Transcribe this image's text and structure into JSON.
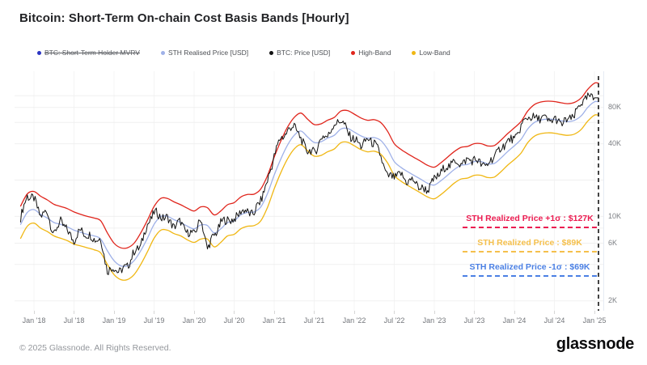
{
  "header": {
    "title": "Bitcoin: Short-Term On-chain Cost Basis Bands [Hourly]"
  },
  "legend": {
    "items": [
      {
        "label": "BTC: Short-Term Holder MVRV",
        "color": "#2b35c3",
        "disabled": true
      },
      {
        "label": "STH Realised Price [USD]",
        "color": "#9fb1e8",
        "disabled": false
      },
      {
        "label": "BTC: Price [USD]",
        "color": "#111111",
        "disabled": false
      },
      {
        "label": "High-Band",
        "color": "#e0251c",
        "disabled": false
      },
      {
        "label": "Low-Band",
        "color": "#f0b713",
        "disabled": false
      }
    ]
  },
  "chart_data": {
    "type": "line",
    "title": "Bitcoin: Short-Term On-chain Cost Basis Bands [Hourly]",
    "y_scale": "log",
    "y_units": "USD thousands",
    "ylim": [
      2,
      130
    ],
    "grid": true,
    "legend_position": "top-left",
    "y_ticks": [
      {
        "label": "80K",
        "value": 80
      },
      {
        "label": "40K",
        "value": 40
      },
      {
        "label": "10K",
        "value": 10
      },
      {
        "label": "6K",
        "value": 6
      },
      {
        "label": "2K",
        "value": 2
      }
    ],
    "y_gridlines": [
      100,
      80,
      60,
      40,
      20,
      10,
      8,
      6,
      4,
      2
    ],
    "start_month": "2017-11",
    "x_ticks": [
      {
        "label": "Jan '18",
        "month_index": 2
      },
      {
        "label": "Jul '18",
        "month_index": 8
      },
      {
        "label": "Jan '19",
        "month_index": 14
      },
      {
        "label": "Jul '19",
        "month_index": 20
      },
      {
        "label": "Jan '20",
        "month_index": 26
      },
      {
        "label": "Jul '20",
        "month_index": 32
      },
      {
        "label": "Jan '21",
        "month_index": 38
      },
      {
        "label": "Jul '21",
        "month_index": 44
      },
      {
        "label": "Jan '22",
        "month_index": 50
      },
      {
        "label": "Jul '22",
        "month_index": 56
      },
      {
        "label": "Jan '23",
        "month_index": 62
      },
      {
        "label": "Jul '23",
        "month_index": 68
      },
      {
        "label": "Jan '24",
        "month_index": 74
      },
      {
        "label": "Jul '24",
        "month_index": 80
      },
      {
        "label": "Jan '25",
        "month_index": 86
      }
    ],
    "series": [
      {
        "name": "Low-Band",
        "color": "#f0b713",
        "style": "smooth",
        "values": [
          6.6,
          8.3,
          8.8,
          8.0,
          7.5,
          6.9,
          6.6,
          6.3,
          5.9,
          5.7,
          5.5,
          5.3,
          5.0,
          4.0,
          3.3,
          3.0,
          3.0,
          3.3,
          4.0,
          5.1,
          6.6,
          7.7,
          7.7,
          7.2,
          6.9,
          6.4,
          6.1,
          6.5,
          6.5,
          5.6,
          6.1,
          6.9,
          7.1,
          7.9,
          8.3,
          8.4,
          9.2,
          11.9,
          16.9,
          23.1,
          30.0,
          36.2,
          39.3,
          35.0,
          31.6,
          32.0,
          34.3,
          36.2,
          40.8,
          41.2,
          38.5,
          35.8,
          34.3,
          34.7,
          32.7,
          27.7,
          21.9,
          19.6,
          18.1,
          16.8,
          15.6,
          14.5,
          14.0,
          15.2,
          16.9,
          18.9,
          20.4,
          20.8,
          21.9,
          21.9,
          21.0,
          21.2,
          23.5,
          26.6,
          29.6,
          33.5,
          40.8,
          46.2,
          48.5,
          49.3,
          48.9,
          47.7,
          47.0,
          48.1,
          52.4,
          61.6,
          69.0
        ]
      },
      {
        "name": "STH Realised Price [USD]",
        "color": "#9fb1e8",
        "style": "smooth",
        "values": [
          8.6,
          10.8,
          11.4,
          10.4,
          9.7,
          8.9,
          8.6,
          8.2,
          7.7,
          7.4,
          7.1,
          6.9,
          6.5,
          5.2,
          4.3,
          3.9,
          3.9,
          4.3,
          5.2,
          6.6,
          8.6,
          10.0,
          10.0,
          9.4,
          8.9,
          8.3,
          7.9,
          8.5,
          8.4,
          7.3,
          7.9,
          8.9,
          9.2,
          10.3,
          10.8,
          10.9,
          12.0,
          15.5,
          22.0,
          30.0,
          39.0,
          47.0,
          51.0,
          45.5,
          41.0,
          41.5,
          44.5,
          47.0,
          53.0,
          53.5,
          50.0,
          46.5,
          44.5,
          45.0,
          42.5,
          36.0,
          28.5,
          25.5,
          23.5,
          21.8,
          20.3,
          18.8,
          18.2,
          19.8,
          22.0,
          24.5,
          26.5,
          27.0,
          28.5,
          28.5,
          27.3,
          27.5,
          30.5,
          34.5,
          38.5,
          43.5,
          53.0,
          60.0,
          63.0,
          64.0,
          63.5,
          62.0,
          61.0,
          62.5,
          68.0,
          80.0,
          89.0
        ]
      },
      {
        "name": "High-Band",
        "color": "#e0251c",
        "style": "smooth",
        "values": [
          12.2,
          15.4,
          16.1,
          14.7,
          13.7,
          12.6,
          12.1,
          11.6,
          10.9,
          10.4,
          10.0,
          9.7,
          9.2,
          7.3,
          6.0,
          5.5,
          5.5,
          6.0,
          7.3,
          9.3,
          12.1,
          14.1,
          14.1,
          13.2,
          12.5,
          11.7,
          11.1,
          12.0,
          11.8,
          10.3,
          11.1,
          12.5,
          13.0,
          14.5,
          15.2,
          15.3,
          16.9,
          21.8,
          31.0,
          42.2,
          54.9,
          66.1,
          71.8,
          64.0,
          57.7,
          58.4,
          62.6,
          66.1,
          74.6,
          75.3,
          70.4,
          65.4,
          62.6,
          63.3,
          59.8,
          50.7,
          40.1,
          35.9,
          33.1,
          30.7,
          28.6,
          26.5,
          25.6,
          27.9,
          31.0,
          34.5,
          37.3,
          38.0,
          40.1,
          40.1,
          38.4,
          38.7,
          42.9,
          48.6,
          54.2,
          61.2,
          74.6,
          84.4,
          88.7,
          90.1,
          89.4,
          87.3,
          85.9,
          88.0,
          95.7,
          113.0,
          127.0
        ]
      },
      {
        "name": "BTC: Price [USD]",
        "color": "#111111",
        "style": "jagged",
        "values": [
          9.8,
          15.0,
          13.8,
          10.2,
          10.9,
          7.0,
          9.3,
          7.5,
          6.4,
          7.7,
          7.0,
          6.6,
          6.4,
          3.6,
          3.7,
          3.5,
          3.9,
          5.0,
          5.8,
          8.5,
          10.8,
          10.0,
          9.6,
          8.3,
          9.0,
          7.2,
          7.3,
          9.4,
          5.5,
          6.9,
          8.8,
          9.5,
          9.2,
          11.3,
          10.8,
          10.6,
          13.8,
          19.4,
          32.0,
          45.0,
          50.0,
          58.0,
          43.0,
          35.5,
          33.5,
          44.0,
          47.0,
          57.0,
          64.0,
          50.0,
          43.0,
          39.0,
          43.0,
          41.0,
          31.0,
          21.0,
          21.5,
          22.0,
          19.5,
          19.8,
          16.8,
          16.8,
          20.0,
          23.5,
          26.0,
          28.5,
          27.5,
          29.0,
          30.0,
          27.0,
          26.5,
          32.0,
          36.5,
          42.5,
          43.0,
          55.0,
          68.0,
          64.0,
          66.5,
          62.0,
          63.5,
          59.0,
          62.5,
          68.5,
          88.0,
          96.0,
          96.0
        ]
      }
    ],
    "annotations": [
      {
        "label": "STH Realized Price +1σ : $127K",
        "value": "$127K",
        "color": "#ec1c51"
      },
      {
        "label": "STH Realized Price  : $89K",
        "value": "$89K",
        "color": "#f5c04c"
      },
      {
        "label": "STH Realized Price -1σ : $69K",
        "value": "$69K",
        "color": "#4b80e4"
      }
    ],
    "current_marker": {
      "style": "dashed-vertical-line",
      "color": "#151515"
    }
  },
  "footer": {
    "copyright": "© 2025 Glassnode. All Rights Reserved.",
    "brand": "glassnode"
  }
}
